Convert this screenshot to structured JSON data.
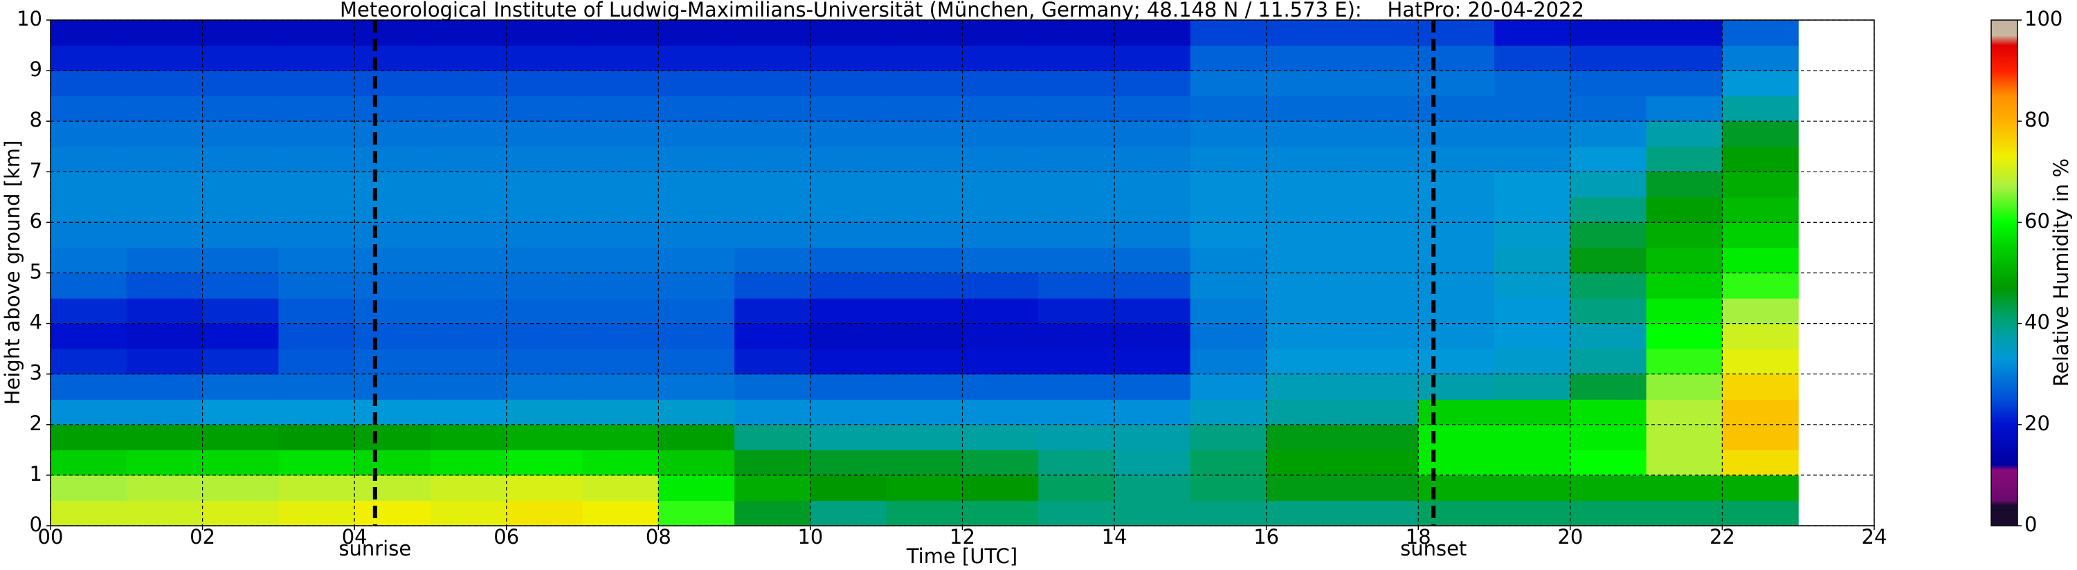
{
  "chart_data": {
    "type": "heatmap",
    "title": "Meteorological Institute of Ludwig-Maximilians-Universität (München, Germany; 48.148 N / 11.573 E):    HatPro: 20-04-2022",
    "xlabel": "Time [UTC]",
    "ylabel": "Height above ground [km]",
    "colorbar_label": "Relative Humidity in %",
    "xbins": [
      0,
      1,
      2,
      3,
      4,
      5,
      6,
      7,
      8,
      9,
      10,
      11,
      12,
      13,
      14,
      15,
      16,
      17,
      18,
      19,
      20,
      21,
      22,
      23
    ],
    "ybins": [
      0,
      0.5,
      1,
      1.5,
      2,
      2.5,
      3,
      3.5,
      4,
      4.5,
      5,
      5.5,
      6,
      6.5,
      7,
      7.5,
      8,
      8.5,
      9,
      9.5,
      10
    ],
    "values": [
      [
        70,
        70,
        71,
        72,
        73,
        72,
        74,
        73,
        62,
        45,
        40,
        42,
        42,
        40,
        40,
        40,
        40,
        40,
        42,
        42,
        42,
        42,
        42
      ],
      [
        67,
        68,
        68,
        69,
        69,
        70,
        71,
        70,
        58,
        50,
        47,
        48,
        47,
        42,
        40,
        42,
        46,
        46,
        50,
        50,
        50,
        50,
        50
      ],
      [
        55,
        56,
        56,
        57,
        56,
        57,
        58,
        57,
        54,
        46,
        45,
        45,
        44,
        40,
        38,
        42,
        48,
        48,
        58,
        58,
        60,
        68,
        75
      ],
      [
        48,
        48,
        48,
        47,
        48,
        49,
        50,
        50,
        48,
        40,
        38,
        38,
        38,
        37,
        37,
        40,
        46,
        46,
        58,
        58,
        58,
        68,
        78
      ],
      [
        32,
        32,
        33,
        33,
        33,
        33,
        34,
        34,
        34,
        32,
        32,
        32,
        32,
        32,
        32,
        35,
        38,
        38,
        55,
        55,
        57,
        68,
        78
      ],
      [
        27,
        27,
        28,
        28,
        28,
        28,
        29,
        29,
        29,
        28,
        27,
        27,
        27,
        27,
        27,
        32,
        36,
        36,
        37,
        38,
        44,
        66,
        76
      ],
      [
        22,
        21,
        22,
        26,
        27,
        27,
        27,
        27,
        27,
        21,
        20,
        20,
        20,
        20,
        20,
        30,
        33,
        33,
        33,
        34,
        38,
        62,
        72
      ],
      [
        20,
        19,
        20,
        25,
        26,
        26,
        26,
        26,
        26,
        20,
        18,
        18,
        19,
        19,
        19,
        29,
        32,
        32,
        32,
        33,
        36,
        60,
        70
      ],
      [
        22,
        21,
        22,
        26,
        27,
        27,
        27,
        27,
        27,
        21,
        20,
        20,
        20,
        21,
        21,
        30,
        32,
        32,
        32,
        33,
        40,
        58,
        67
      ],
      [
        27,
        25,
        26,
        28,
        28,
        28,
        28,
        28,
        28,
        25,
        24,
        24,
        24,
        25,
        25,
        31,
        32,
        32,
        32,
        34,
        42,
        55,
        62
      ],
      [
        29,
        28,
        28,
        29,
        29,
        29,
        29,
        29,
        29,
        28,
        27,
        27,
        28,
        28,
        28,
        31,
        32,
        32,
        32,
        35,
        46,
        52,
        58
      ],
      [
        30,
        30,
        30,
        30,
        30,
        30,
        30,
        30,
        30,
        30,
        30,
        30,
        30,
        30,
        30,
        32,
        32,
        32,
        32,
        34,
        44,
        50,
        55
      ],
      [
        31,
        31,
        31,
        31,
        31,
        31,
        31,
        31,
        31,
        31,
        31,
        31,
        31,
        31,
        31,
        32,
        32,
        32,
        32,
        33,
        40,
        48,
        52
      ],
      [
        31,
        31,
        31,
        31,
        31,
        31,
        31,
        31,
        31,
        31,
        31,
        31,
        31,
        31,
        31,
        32,
        32,
        32,
        32,
        33,
        36,
        45,
        50
      ],
      [
        30,
        30,
        30,
        30,
        30,
        30,
        30,
        30,
        30,
        30,
        30,
        30,
        30,
        30,
        30,
        31,
        31,
        31,
        31,
        31,
        33,
        40,
        48
      ],
      [
        29,
        29,
        29,
        29,
        29,
        29,
        29,
        29,
        29,
        29,
        29,
        29,
        29,
        29,
        29,
        30,
        30,
        30,
        30,
        30,
        31,
        37,
        45
      ],
      [
        27,
        27,
        27,
        27,
        27,
        27,
        27,
        27,
        27,
        27,
        27,
        27,
        27,
        27,
        27,
        28,
        28,
        28,
        28,
        28,
        28,
        30,
        38
      ],
      [
        25,
        25,
        25,
        25,
        25,
        25,
        25,
        25,
        25,
        25,
        25,
        25,
        25,
        25,
        25,
        29,
        29,
        29,
        29,
        28,
        27,
        27,
        33
      ],
      [
        21,
        21,
        21,
        21,
        21,
        21,
        21,
        21,
        21,
        21,
        21,
        21,
        21,
        21,
        21,
        27,
        27,
        27,
        27,
        24,
        23,
        23,
        30
      ],
      [
        17,
        17,
        17,
        17,
        17,
        17,
        17,
        17,
        17,
        17,
        17,
        17,
        17,
        17,
        17,
        24,
        24,
        24,
        24,
        20,
        19,
        19,
        27
      ]
    ],
    "xlim": [
      0,
      24
    ],
    "xticks": [
      {
        "value": 0,
        "label": "00"
      },
      {
        "value": 2,
        "label": "02"
      },
      {
        "value": 4,
        "label": "04"
      },
      {
        "value": 6,
        "label": "06"
      },
      {
        "value": 8,
        "label": "08"
      },
      {
        "value": 10,
        "label": "10"
      },
      {
        "value": 12,
        "label": "12"
      },
      {
        "value": 14,
        "label": "14"
      },
      {
        "value": 16,
        "label": "16"
      },
      {
        "value": 18,
        "label": "18"
      },
      {
        "value": 20,
        "label": "20"
      },
      {
        "value": 22,
        "label": "22"
      },
      {
        "value": 24,
        "label": "24"
      }
    ],
    "ylim": [
      0,
      10
    ],
    "yticks": [
      0,
      1,
      2,
      3,
      4,
      5,
      6,
      7,
      8,
      9,
      10
    ],
    "clim": [
      0,
      100
    ],
    "cticks": [
      0,
      20,
      40,
      60,
      80,
      100
    ],
    "colorscale": [
      [
        0,
        "#1a0a2e"
      ],
      [
        4,
        "#1a0a2e"
      ],
      [
        5,
        "#6a0a6e"
      ],
      [
        11,
        "#8a0a7a"
      ],
      [
        12,
        "#0000a0"
      ],
      [
        20,
        "#0010d0"
      ],
      [
        25,
        "#0050d8"
      ],
      [
        33,
        "#0098d8"
      ],
      [
        38,
        "#00a0a0"
      ],
      [
        42,
        "#00a060"
      ],
      [
        47,
        "#009800"
      ],
      [
        55,
        "#00d000"
      ],
      [
        60,
        "#00ff00"
      ],
      [
        67,
        "#a8f040"
      ],
      [
        73,
        "#f0f000"
      ],
      [
        80,
        "#ffb000"
      ],
      [
        85,
        "#ff9000"
      ],
      [
        90,
        "#ff2000"
      ],
      [
        95,
        "#e00000"
      ],
      [
        97,
        "#c8b8a0"
      ],
      [
        100,
        "#c0b0a0"
      ]
    ],
    "grid": true,
    "annotations": [
      {
        "x": 4.27,
        "label": "sunrise"
      },
      {
        "x": 18.2,
        "label": "sunset"
      }
    ]
  }
}
